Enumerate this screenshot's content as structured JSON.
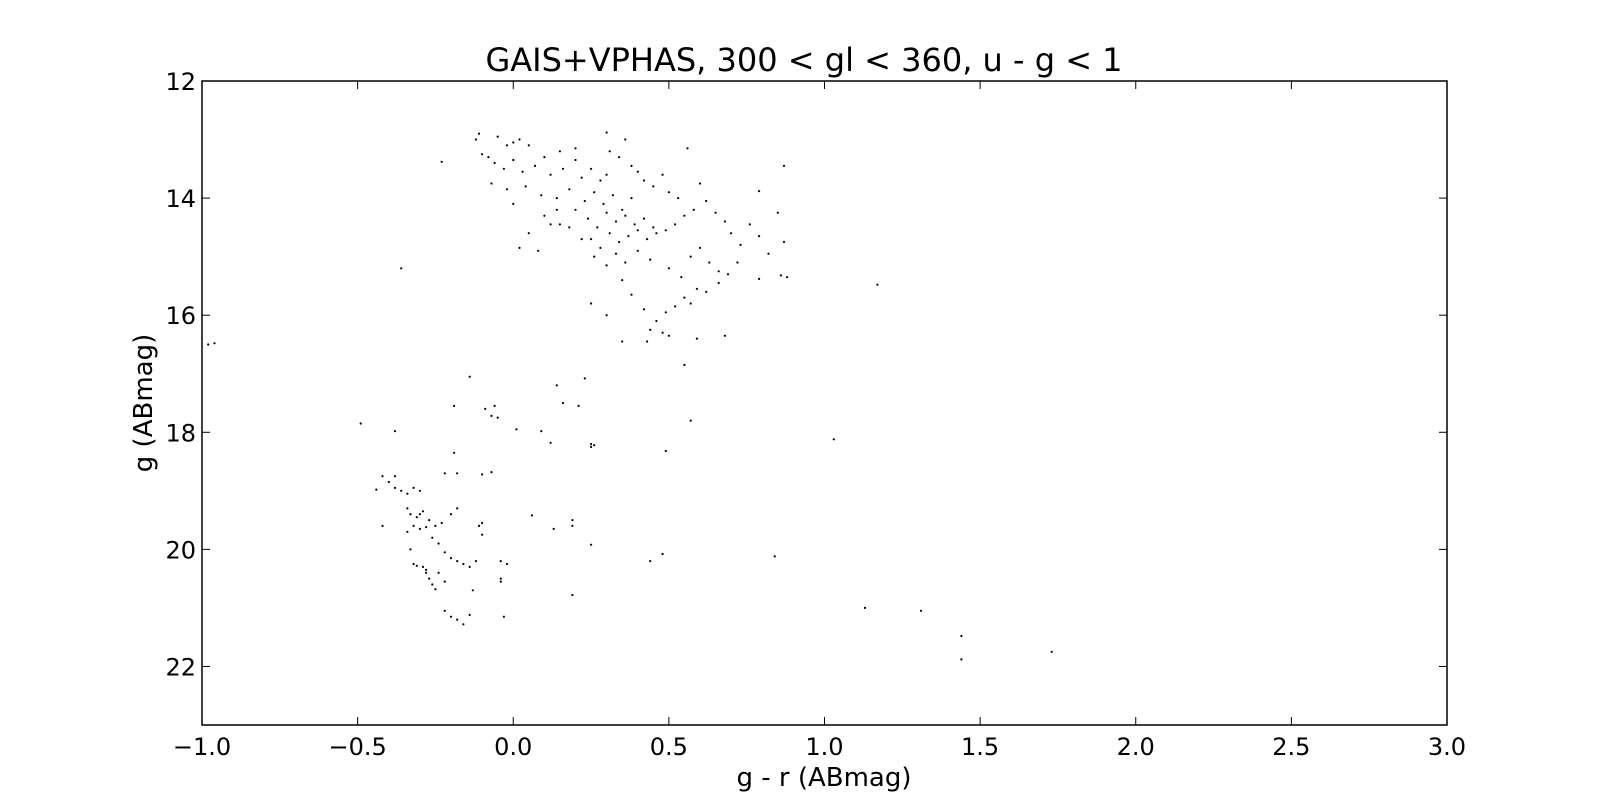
{
  "chart_data": {
    "type": "scatter",
    "title": "GAIS+VPHAS, 300 < gl < 360, u - g < 1",
    "xlabel": "g - r (ABmag)",
    "ylabel": "g (ABmag)",
    "xlim": [
      -1.0,
      3.0
    ],
    "ylim": [
      23,
      12
    ],
    "y_inverted": true,
    "xticks": [
      -1.0,
      -0.5,
      0.0,
      0.5,
      1.0,
      1.5,
      2.0,
      2.5,
      3.0
    ],
    "xtick_labels": [
      "−1.0",
      "−0.5",
      "0.0",
      "0.5",
      "1.0",
      "1.5",
      "2.0",
      "2.5",
      "3.0"
    ],
    "yticks": [
      12,
      14,
      16,
      18,
      20,
      22
    ],
    "ytick_labels": [
      "12",
      "14",
      "16",
      "18",
      "20",
      "22"
    ],
    "grid": false,
    "marker_color": "#000000",
    "points": [
      [
        -0.23,
        13.38
      ],
      [
        -0.12,
        13.0
      ],
      [
        -0.11,
        12.9
      ],
      [
        -0.08,
        13.3
      ],
      [
        -0.05,
        12.95
      ],
      [
        -0.02,
        13.1
      ],
      [
        0.0,
        13.05
      ],
      [
        0.02,
        13.0
      ],
      [
        0.05,
        13.1
      ],
      [
        0.1,
        13.3
      ],
      [
        0.15,
        13.2
      ],
      [
        0.2,
        13.35
      ],
      [
        -0.1,
        13.25
      ],
      [
        -0.06,
        13.4
      ],
      [
        -0.03,
        13.5
      ],
      [
        0.0,
        13.35
      ],
      [
        0.03,
        13.55
      ],
      [
        0.07,
        13.45
      ],
      [
        0.12,
        13.6
      ],
      [
        0.16,
        13.5
      ],
      [
        0.22,
        13.65
      ],
      [
        0.25,
        13.5
      ],
      [
        0.28,
        13.7
      ],
      [
        0.3,
        13.6
      ],
      [
        -0.07,
        13.75
      ],
      [
        -0.02,
        13.85
      ],
      [
        0.04,
        13.8
      ],
      [
        0.09,
        13.95
      ],
      [
        0.14,
        14.0
      ],
      [
        0.18,
        13.85
      ],
      [
        0.23,
        14.05
      ],
      [
        0.26,
        13.9
      ],
      [
        0.29,
        14.1
      ],
      [
        0.32,
        13.95
      ],
      [
        0.35,
        14.2
      ],
      [
        0.38,
        14.0
      ],
      [
        0.0,
        14.1
      ],
      [
        0.1,
        14.3
      ],
      [
        0.15,
        14.45
      ],
      [
        0.2,
        14.2
      ],
      [
        0.24,
        14.35
      ],
      [
        0.27,
        14.5
      ],
      [
        0.3,
        14.25
      ],
      [
        0.33,
        14.4
      ],
      [
        0.36,
        14.3
      ],
      [
        0.39,
        14.45
      ],
      [
        0.42,
        14.35
      ],
      [
        0.45,
        14.5
      ],
      [
        0.25,
        14.7
      ],
      [
        0.28,
        14.85
      ],
      [
        0.31,
        14.6
      ],
      [
        0.34,
        14.75
      ],
      [
        0.37,
        14.65
      ],
      [
        0.4,
        14.55
      ],
      [
        0.43,
        14.7
      ],
      [
        0.46,
        14.6
      ],
      [
        0.49,
        14.55
      ],
      [
        0.52,
        14.45
      ],
      [
        0.55,
        14.3
      ],
      [
        0.58,
        14.2
      ],
      [
        0.26,
        15.0
      ],
      [
        0.3,
        15.15
      ],
      [
        0.33,
        14.95
      ],
      [
        0.36,
        15.1
      ],
      [
        0.4,
        14.9
      ],
      [
        0.44,
        15.05
      ],
      [
        0.5,
        15.2
      ],
      [
        0.54,
        15.35
      ],
      [
        0.57,
        15.0
      ],
      [
        0.6,
        14.85
      ],
      [
        0.63,
        15.1
      ],
      [
        0.66,
        15.25
      ],
      [
        0.31,
        13.2
      ],
      [
        0.34,
        13.3
      ],
      [
        0.36,
        13.0
      ],
      [
        0.38,
        13.45
      ],
      [
        0.4,
        13.55
      ],
      [
        0.42,
        13.7
      ],
      [
        0.45,
        13.8
      ],
      [
        0.48,
        13.6
      ],
      [
        0.5,
        13.9
      ],
      [
        0.53,
        14.0
      ],
      [
        0.56,
        13.15
      ],
      [
        0.6,
        13.75
      ],
      [
        0.62,
        14.05
      ],
      [
        0.65,
        14.25
      ],
      [
        0.68,
        14.4
      ],
      [
        0.7,
        14.6
      ],
      [
        0.73,
        14.8
      ],
      [
        0.76,
        14.45
      ],
      [
        0.79,
        14.65
      ],
      [
        0.82,
        14.95
      ],
      [
        0.85,
        14.25
      ],
      [
        0.87,
        14.75
      ],
      [
        0.88,
        15.35
      ],
      [
        0.86,
        15.32
      ],
      [
        0.79,
        13.88
      ],
      [
        0.87,
        13.45
      ],
      [
        0.72,
        15.1
      ],
      [
        0.69,
        15.3
      ],
      [
        0.66,
        15.45
      ],
      [
        0.59,
        15.55
      ],
      [
        0.55,
        15.7
      ],
      [
        0.52,
        15.85
      ],
      [
        0.49,
        15.95
      ],
      [
        0.46,
        16.1
      ],
      [
        0.42,
        15.9
      ],
      [
        0.38,
        15.65
      ],
      [
        0.35,
        15.4
      ],
      [
        0.44,
        16.25
      ],
      [
        0.48,
        16.3
      ],
      [
        0.5,
        16.35
      ],
      [
        0.43,
        16.45
      ],
      [
        0.35,
        16.45
      ],
      [
        0.3,
        16.0
      ],
      [
        0.25,
        15.8
      ],
      [
        0.55,
        16.85
      ],
      [
        0.59,
        16.4
      ],
      [
        0.68,
        16.35
      ],
      [
        0.57,
        15.8
      ],
      [
        1.17,
        15.48
      ],
      [
        0.79,
        15.38
      ],
      [
        0.62,
        15.6
      ],
      [
        0.22,
        14.7
      ],
      [
        0.18,
        14.5
      ],
      [
        0.12,
        14.45
      ],
      [
        0.05,
        14.6
      ],
      [
        0.02,
        14.85
      ],
      [
        0.08,
        14.9
      ],
      [
        0.14,
        14.2
      ],
      [
        0.3,
        12.88
      ],
      [
        0.2,
        13.15
      ],
      [
        -0.36,
        15.2
      ],
      [
        -0.98,
        16.5
      ],
      [
        -0.96,
        16.48
      ],
      [
        -0.14,
        17.05
      ],
      [
        -0.19,
        17.55
      ],
      [
        -0.09,
        17.6
      ],
      [
        -0.07,
        17.72
      ],
      [
        -0.05,
        17.75
      ],
      [
        -0.06,
        17.55
      ],
      [
        0.01,
        17.95
      ],
      [
        0.09,
        17.98
      ],
      [
        0.12,
        18.18
      ],
      [
        0.16,
        17.5
      ],
      [
        0.21,
        17.55
      ],
      [
        0.23,
        17.08
      ],
      [
        0.14,
        17.2
      ],
      [
        0.25,
        18.2
      ],
      [
        0.25,
        18.25
      ],
      [
        0.26,
        18.22
      ],
      [
        0.49,
        18.32
      ],
      [
        0.57,
        17.8
      ],
      [
        1.03,
        18.12
      ],
      [
        -0.49,
        17.85
      ],
      [
        -0.38,
        17.98
      ],
      [
        -0.19,
        18.35
      ],
      [
        -0.42,
        18.75
      ],
      [
        -0.4,
        18.85
      ],
      [
        -0.38,
        18.95
      ],
      [
        -0.36,
        19.0
      ],
      [
        -0.34,
        19.05
      ],
      [
        -0.32,
        18.95
      ],
      [
        -0.3,
        19.0
      ],
      [
        -0.44,
        18.98
      ],
      [
        -0.38,
        18.75
      ],
      [
        -0.22,
        18.7
      ],
      [
        -0.18,
        18.7
      ],
      [
        -0.1,
        18.72
      ],
      [
        -0.07,
        18.68
      ],
      [
        -0.34,
        19.3
      ],
      [
        -0.33,
        19.4
      ],
      [
        -0.31,
        19.45
      ],
      [
        -0.29,
        19.35
      ],
      [
        -0.27,
        19.5
      ],
      [
        -0.25,
        19.6
      ],
      [
        -0.23,
        19.55
      ],
      [
        -0.2,
        19.4
      ],
      [
        -0.18,
        19.3
      ],
      [
        -0.32,
        19.6
      ],
      [
        -0.3,
        19.65
      ],
      [
        -0.28,
        19.62
      ],
      [
        -0.34,
        19.7
      ],
      [
        -0.26,
        19.8
      ],
      [
        -0.24,
        19.9
      ],
      [
        -0.22,
        20.05
      ],
      [
        -0.2,
        20.15
      ],
      [
        -0.18,
        20.2
      ],
      [
        -0.16,
        20.25
      ],
      [
        -0.14,
        20.3
      ],
      [
        -0.12,
        20.2
      ],
      [
        -0.1,
        19.75
      ],
      [
        -0.11,
        19.6
      ],
      [
        -0.1,
        19.55
      ],
      [
        -0.33,
        20.0
      ],
      [
        -0.32,
        20.25
      ],
      [
        -0.31,
        20.28
      ],
      [
        -0.29,
        20.3
      ],
      [
        -0.28,
        20.4
      ],
      [
        -0.27,
        20.5
      ],
      [
        -0.26,
        20.6
      ],
      [
        -0.25,
        20.68
      ],
      [
        -0.24,
        20.4
      ],
      [
        -0.22,
        20.55
      ],
      [
        -0.04,
        20.2
      ],
      [
        -0.02,
        20.25
      ],
      [
        -0.04,
        20.5
      ],
      [
        -0.04,
        20.55
      ],
      [
        -0.13,
        20.7
      ],
      [
        -0.22,
        21.05
      ],
      [
        -0.2,
        21.15
      ],
      [
        -0.18,
        21.2
      ],
      [
        -0.16,
        21.28
      ],
      [
        -0.14,
        21.12
      ],
      [
        -0.03,
        21.15
      ],
      [
        -0.42,
        19.6
      ],
      [
        -0.3,
        19.4
      ],
      [
        -0.28,
        20.35
      ],
      [
        0.06,
        19.42
      ],
      [
        0.13,
        19.65
      ],
      [
        0.19,
        19.5
      ],
      [
        0.19,
        19.6
      ],
      [
        0.25,
        19.92
      ],
      [
        0.19,
        20.78
      ],
      [
        0.44,
        20.2
      ],
      [
        0.48,
        20.08
      ],
      [
        0.84,
        20.12
      ],
      [
        1.13,
        21.0
      ],
      [
        1.31,
        21.05
      ],
      [
        1.44,
        21.48
      ],
      [
        1.44,
        21.88
      ],
      [
        1.73,
        21.75
      ]
    ]
  }
}
